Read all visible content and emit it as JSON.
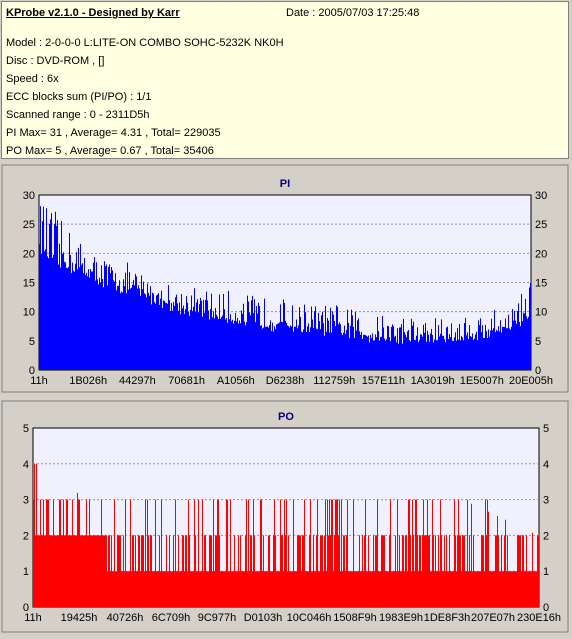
{
  "header": {
    "app_title": "KProbe v2.1.0 - Designed by Karr",
    "date": "Date : 2005/07/03 17:25:48",
    "lines": [
      "Model : 2-0-0-0 L:LITE-ON COMBO SOHC-5232K NK0H",
      "Disc : DVD-ROM ,  []",
      "Speed : 6x",
      "ECC blocks sum (PI/PO) : 1/1",
      "Scanned range : 0 - 2311D5h",
      "PI Max= 31 , Average= 4.31 , Total= 229035",
      "PO Max= 5 , Average= 0.67 , Total= 35406"
    ]
  },
  "colors": {
    "pi": "#0000ff",
    "po": "#ff0000",
    "plot_bg": "#f0f0ff",
    "grid": "#9090c0"
  },
  "chart_data": [
    {
      "type": "bar",
      "title": "PI",
      "ylim": [
        0,
        30
      ],
      "yticks": [
        "0",
        "5",
        "10",
        "15",
        "20",
        "25",
        "30"
      ],
      "xticks": [
        "11h",
        "1B026h",
        "44297h",
        "70681h",
        "A1056h",
        "D6238h",
        "112759h",
        "157E11h",
        "1A3019h",
        "1E5007h",
        "20E005h"
      ],
      "grid": true,
      "profile": [
        [
          0.0,
          21,
          30
        ],
        [
          0.03,
          18,
          27
        ],
        [
          0.07,
          17,
          24
        ],
        [
          0.1,
          16,
          20
        ],
        [
          0.15,
          14,
          19
        ],
        [
          0.2,
          13,
          17
        ],
        [
          0.25,
          11,
          15
        ],
        [
          0.3,
          10,
          14
        ],
        [
          0.4,
          8,
          13
        ],
        [
          0.5,
          7,
          12
        ],
        [
          0.6,
          6,
          11
        ],
        [
          0.7,
          5,
          10
        ],
        [
          0.78,
          5,
          9
        ],
        [
          0.85,
          5,
          9
        ],
        [
          0.92,
          6,
          10
        ],
        [
          0.96,
          7,
          11
        ],
        [
          1.0,
          9,
          16
        ]
      ]
    },
    {
      "type": "bar",
      "title": "PO",
      "ylim": [
        0,
        5
      ],
      "yticks": [
        "0",
        "1",
        "2",
        "3",
        "4",
        "5"
      ],
      "xticks": [
        "11h",
        "19425h",
        "40726h",
        "6C709h",
        "9C977h",
        "D0103h",
        "10C046h",
        "1508F9h",
        "1983E9h",
        "1DE8F3h",
        "207E07h",
        "230E16h"
      ],
      "grid": true,
      "profile": [
        [
          0.0,
          2,
          5
        ],
        [
          0.03,
          2,
          4
        ],
        [
          0.1,
          2,
          3
        ],
        [
          0.18,
          1,
          3
        ],
        [
          0.3,
          1,
          3
        ],
        [
          0.5,
          1,
          3
        ],
        [
          0.7,
          1,
          3
        ],
        [
          0.85,
          1,
          3
        ],
        [
          1.0,
          1,
          2
        ]
      ]
    }
  ]
}
